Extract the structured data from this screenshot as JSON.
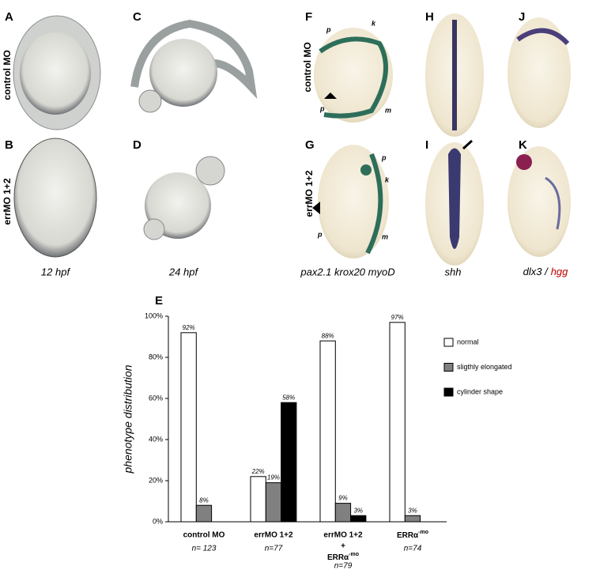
{
  "panel_labels": [
    "A",
    "B",
    "C",
    "D",
    "F",
    "G",
    "H",
    "I",
    "J",
    "K"
  ],
  "row_labels": [
    "control MO",
    "errMO 1+2"
  ],
  "captions": [
    "12 hpf",
    "24 hpf",
    "pax2.1 krox20 myoD",
    "shh",
    [
      "dlx3 /",
      "hgg"
    ]
  ],
  "annotations": {
    "F": [
      "p",
      "k",
      "p",
      "m"
    ],
    "G": [
      "p",
      "k",
      "p",
      "m"
    ]
  },
  "chart_data": {
    "type": "bar",
    "panel_label": "E",
    "y_label": "phenotype distribution",
    "categories": [
      "control MO",
      "errMO 1+2",
      [
        "errMO 1+2",
        "+",
        [
          "ERRα",
          "-mo"
        ]
      ],
      [
        [
          "ERRα",
          "-mo"
        ]
      ]
    ],
    "n_labels": [
      "n= 123",
      "n=77",
      "n=79",
      "n=74"
    ],
    "series": [
      {
        "name": "normal",
        "color": "#ffffff",
        "values": [
          92,
          22,
          88,
          97
        ],
        "value_labels": [
          "92%",
          "22%",
          "88%",
          "97%"
        ]
      },
      {
        "name": "sligthly elongated",
        "color": "#808080",
        "values": [
          8,
          19,
          9,
          3
        ],
        "value_labels": [
          "8%",
          "19%",
          "9%",
          "3%"
        ]
      },
      {
        "name": "cylinder shape",
        "color": "#000000",
        "values": [
          null,
          58,
          3,
          null
        ],
        "value_labels": [
          null,
          "58%",
          "3%",
          null
        ]
      }
    ],
    "ylim": [
      0,
      100
    ],
    "yticks": [
      {
        "value": 0,
        "label": "0%"
      },
      {
        "value": 20,
        "label": "20%"
      },
      {
        "value": 40,
        "label": "40%"
      },
      {
        "value": 60,
        "label": "60%"
      },
      {
        "value": 80,
        "label": "80%"
      },
      {
        "value": 100,
        "label": "100%"
      }
    ],
    "legend": "right"
  }
}
